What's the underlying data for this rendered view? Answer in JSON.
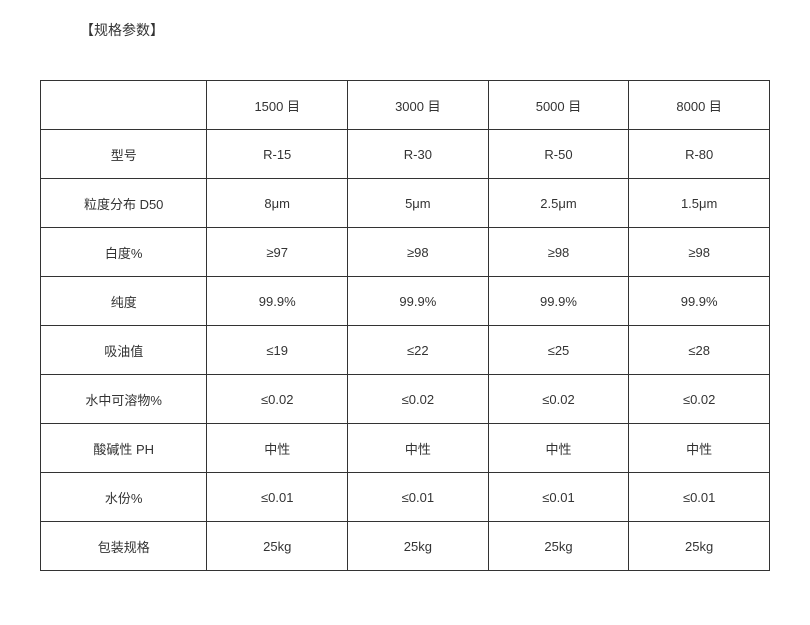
{
  "title": "【规格参数】",
  "table": {
    "columns": [
      "",
      "1500 目",
      "3000 目",
      "5000 目",
      "8000 目"
    ],
    "rows": [
      {
        "label": "型号",
        "values": [
          "R-15",
          "R-30",
          "R-50",
          "R-80"
        ]
      },
      {
        "label": "粒度分布 D50",
        "values": [
          "8μm",
          "5μm",
          "2.5μm",
          "1.5μm"
        ]
      },
      {
        "label": "白度%",
        "values": [
          "≥97",
          "≥98",
          "≥98",
          "≥98"
        ]
      },
      {
        "label": "纯度",
        "values": [
          "99.9%",
          "99.9%",
          "99.9%",
          "99.9%"
        ]
      },
      {
        "label": "吸油值",
        "values": [
          "≤19",
          "≤22",
          "≤25",
          "≤28"
        ]
      },
      {
        "label": "水中可溶物%",
        "values": [
          "≤0.02",
          "≤0.02",
          "≤0.02",
          "≤0.02"
        ]
      },
      {
        "label": "酸碱性 PH",
        "values": [
          "中性",
          "中性",
          "中性",
          "中性"
        ]
      },
      {
        "label": "水份%",
        "values": [
          "≤0.01",
          "≤0.01",
          "≤0.01",
          "≤0.01"
        ]
      },
      {
        "label": "包装规格",
        "values": [
          "25kg",
          "25kg",
          "25kg",
          "25kg"
        ]
      }
    ],
    "border_color": "#333333",
    "text_color": "#333333",
    "background_color": "#ffffff",
    "font_size": 13,
    "title_font_size": 14,
    "cell_padding": "12px 4px"
  }
}
